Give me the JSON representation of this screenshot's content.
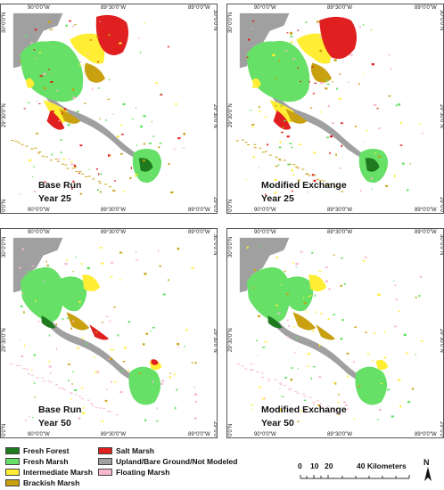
{
  "coords": {
    "lon_ticks": [
      "90°0'0\"W",
      "89°30'0\"W",
      "89°0'0\"W"
    ],
    "lat_ticks": [
      "30°0'0\"N",
      "29°30'0\"N",
      "29°0'0\"N"
    ]
  },
  "panels": [
    {
      "scenario": "Base Run",
      "year": "Year 25"
    },
    {
      "scenario": "Modified Exchange",
      "year": "Year 25"
    },
    {
      "scenario": "Base Run",
      "year": "Year 50"
    },
    {
      "scenario": "Modified Exchange",
      "year": "Year 50"
    }
  ],
  "legend": [
    {
      "label": "Fresh Forest",
      "color": "#1f7a1f"
    },
    {
      "label": "Fresh Marsh",
      "color": "#66e066"
    },
    {
      "label": "Intermediate Marsh",
      "color": "#ffee33"
    },
    {
      "label": "Brackish Marsh",
      "color": "#c8a010"
    },
    {
      "label": "Salt Marsh",
      "color": "#e02020"
    },
    {
      "label": "Upland/Bare Ground/Not Modeled",
      "color": "#a0a0a0"
    },
    {
      "label": "Floating Marsh",
      "color": "#f7b8d0"
    }
  ],
  "scale": {
    "ticks": [
      "0",
      "10",
      "20",
      "40 Kilometers"
    ]
  },
  "north": {
    "label": "N"
  }
}
